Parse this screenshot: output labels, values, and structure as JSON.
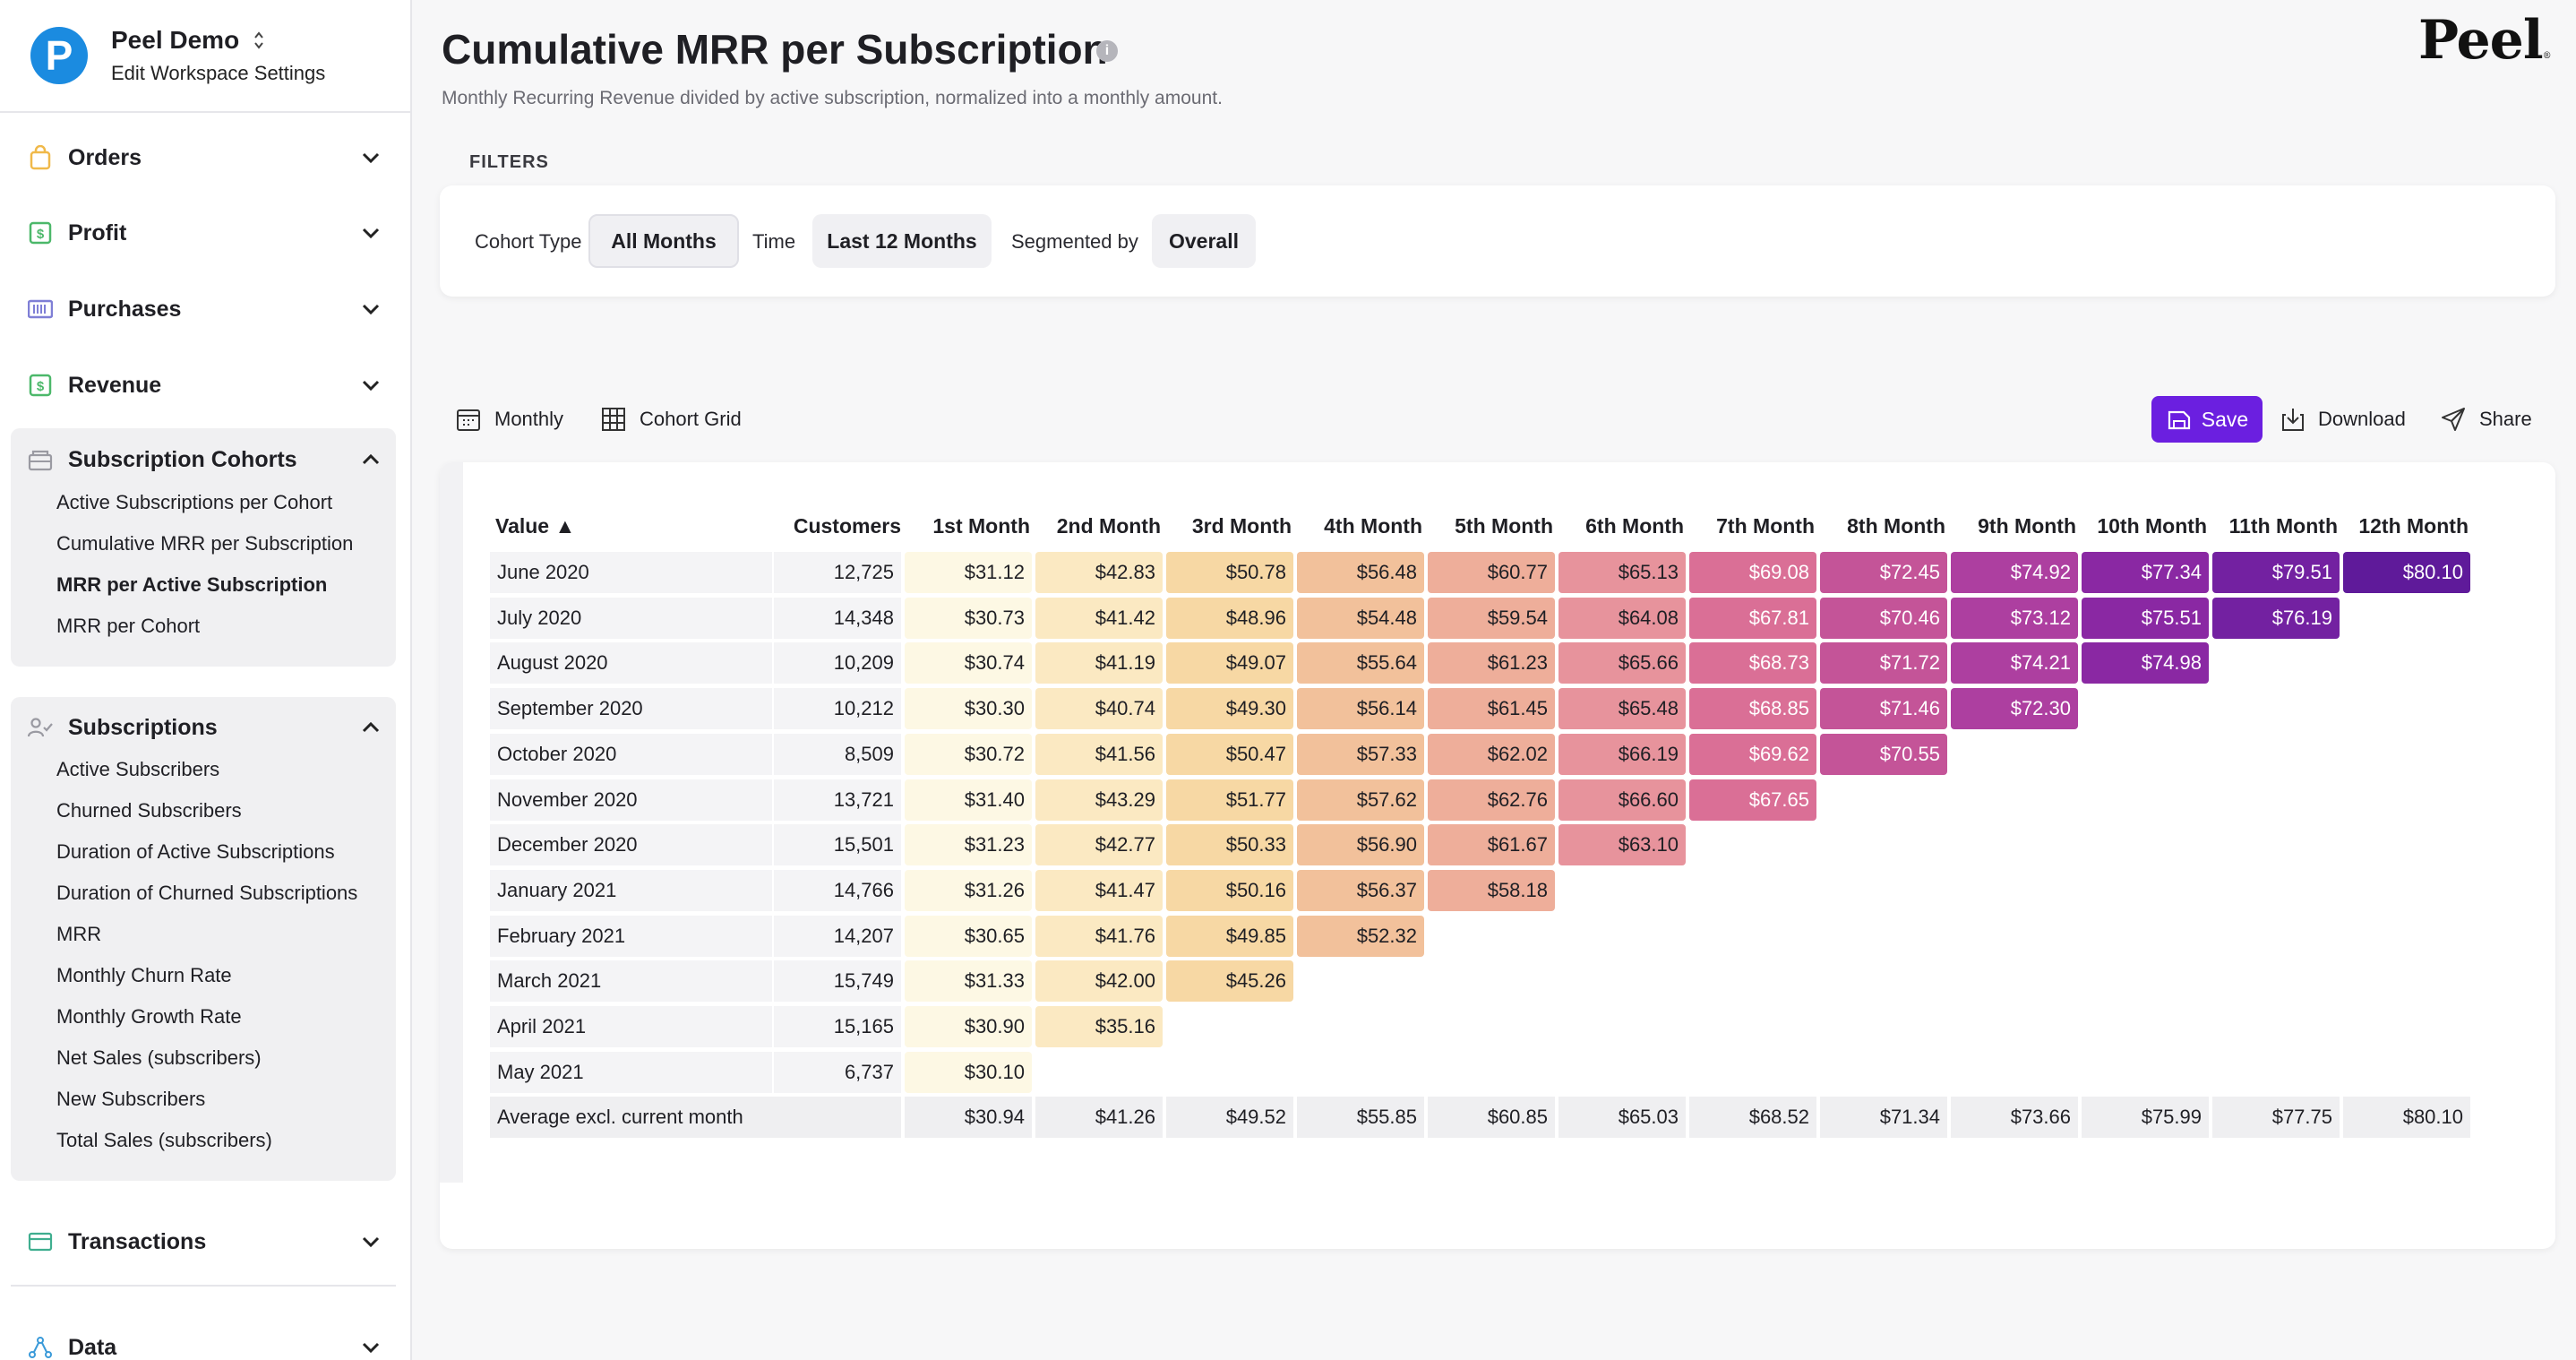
{
  "workspace": {
    "logo_letter": "P",
    "name": "Peel Demo",
    "settings_link": "Edit Workspace Settings"
  },
  "sidebar": {
    "orders": "Orders",
    "profit": "Profit",
    "purchases": "Purchases",
    "revenue": "Revenue",
    "subscription_cohorts": {
      "label": "Subscription Cohorts",
      "items": [
        "Active Subscriptions per Cohort",
        "Cumulative MRR per Subscription",
        "MRR per Active Subscription",
        "MRR per Cohort"
      ]
    },
    "subscriptions": {
      "label": "Subscriptions",
      "items": [
        "Active Subscribers",
        "Churned Subscribers",
        "Duration of Active Subscriptions",
        "Duration of Churned Subscriptions",
        "MRR",
        "Monthly Churn Rate",
        "Monthly Growth Rate",
        "Net Sales (subscribers)",
        "New Subscribers",
        "Total Sales (subscribers)"
      ]
    },
    "transactions": "Transactions",
    "data": "Data"
  },
  "page": {
    "title": "Cumulative MRR per Subscription",
    "info_glyph": "i",
    "subtitle": "Monthly Recurring Revenue divided by active subscription, normalized into a monthly amount.",
    "brand": "Peel",
    "brand_mark": "®"
  },
  "filters": {
    "section_label": "FILTERS",
    "cohort_type_label": "Cohort Type",
    "cohort_type_value": "All Months",
    "time_label": "Time",
    "time_value": "Last 12 Months",
    "segment_label": "Segmented by",
    "segment_value": "Overall"
  },
  "toolbar": {
    "monthly": "Monthly",
    "cohort_grid": "Cohort Grid",
    "save": "Save",
    "download": "Download",
    "share": "Share"
  },
  "grid": {
    "value_header": "Value ▲",
    "customers_header": "Customers",
    "month_headers": [
      "1st Month",
      "2nd Month",
      "3rd Month",
      "4th Month",
      "5th Month",
      "6th Month",
      "7th Month",
      "8th Month",
      "9th Month",
      "10th Month",
      "11th Month",
      "12th Month"
    ],
    "rows": [
      {
        "label": "June 2020",
        "customers": "12,725",
        "values": [
          "$31.12",
          "$42.83",
          "$50.78",
          "$56.48",
          "$60.77",
          "$65.13",
          "$69.08",
          "$72.45",
          "$74.92",
          "$77.34",
          "$79.51",
          "$80.10"
        ]
      },
      {
        "label": "July 2020",
        "customers": "14,348",
        "values": [
          "$30.73",
          "$41.42",
          "$48.96",
          "$54.48",
          "$59.54",
          "$64.08",
          "$67.81",
          "$70.46",
          "$73.12",
          "$75.51",
          "$76.19"
        ]
      },
      {
        "label": "August 2020",
        "customers": "10,209",
        "values": [
          "$30.74",
          "$41.19",
          "$49.07",
          "$55.64",
          "$61.23",
          "$65.66",
          "$68.73",
          "$71.72",
          "$74.21",
          "$74.98"
        ]
      },
      {
        "label": "September 2020",
        "customers": "10,212",
        "values": [
          "$30.30",
          "$40.74",
          "$49.30",
          "$56.14",
          "$61.45",
          "$65.48",
          "$68.85",
          "$71.46",
          "$72.30"
        ]
      },
      {
        "label": "October 2020",
        "customers": "8,509",
        "values": [
          "$30.72",
          "$41.56",
          "$50.47",
          "$57.33",
          "$62.02",
          "$66.19",
          "$69.62",
          "$70.55"
        ]
      },
      {
        "label": "November 2020",
        "customers": "13,721",
        "values": [
          "$31.40",
          "$43.29",
          "$51.77",
          "$57.62",
          "$62.76",
          "$66.60",
          "$67.65"
        ]
      },
      {
        "label": "December 2020",
        "customers": "15,501",
        "values": [
          "$31.23",
          "$42.77",
          "$50.33",
          "$56.90",
          "$61.67",
          "$63.10"
        ]
      },
      {
        "label": "January 2021",
        "customers": "14,766",
        "values": [
          "$31.26",
          "$41.47",
          "$50.16",
          "$56.37",
          "$58.18"
        ]
      },
      {
        "label": "February 2021",
        "customers": "14,207",
        "values": [
          "$30.65",
          "$41.76",
          "$49.85",
          "$52.32"
        ]
      },
      {
        "label": "March 2021",
        "customers": "15,749",
        "values": [
          "$31.33",
          "$42.00",
          "$45.26"
        ]
      },
      {
        "label": "April 2021",
        "customers": "15,165",
        "values": [
          "$30.90",
          "$35.16"
        ]
      },
      {
        "label": "May 2021",
        "customers": "6,737",
        "values": [
          "$30.10"
        ]
      }
    ],
    "average_row": {
      "label": "Average excl. current month",
      "values": [
        "$30.94",
        "$41.26",
        "$49.52",
        "$55.85",
        "$60.85",
        "$65.03",
        "$68.52",
        "$71.34",
        "$73.66",
        "$75.99",
        "$77.75",
        "$80.10"
      ]
    },
    "column_colors": [
      "#fdf8e4",
      "#fbe9c2",
      "#f7d8a4",
      "#f2c19b",
      "#eeae9a",
      "#e7939c",
      "#da6f96",
      "#c45498",
      "#ad3fa0",
      "#8a28a3",
      "#7321a1",
      "#5f1a9a"
    ],
    "light_text_from_column": 6
  }
}
